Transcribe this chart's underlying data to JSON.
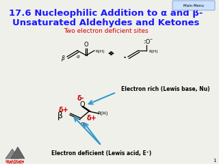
{
  "title_line1": "17.6 Nucleophilic Addition to α and β-",
  "title_line2": "Unsaturated Aldehydes and Ketones",
  "title_color": "#1a1aff",
  "title_fontsize": 9.5,
  "subtitle": "Two electron deficient sites",
  "subtitle_color": "#cc0000",
  "subtitle_fontsize": 6.5,
  "bg_color": "#f0f0eb",
  "main_menu_text": "Main Menu",
  "label_electron_rich": "Electron rich (Lewis base, Nu)",
  "label_electron_deficient": "Electron deficient (Lewis acid, E⁺)",
  "delta_minus": "δ-",
  "delta_plus": "δ+",
  "beta_label": "β",
  "alpha_label": "α",
  "rh_label": "R(H)",
  "arrow_color": "#3399cc",
  "red_color": "#cc0000",
  "black": "#000000"
}
